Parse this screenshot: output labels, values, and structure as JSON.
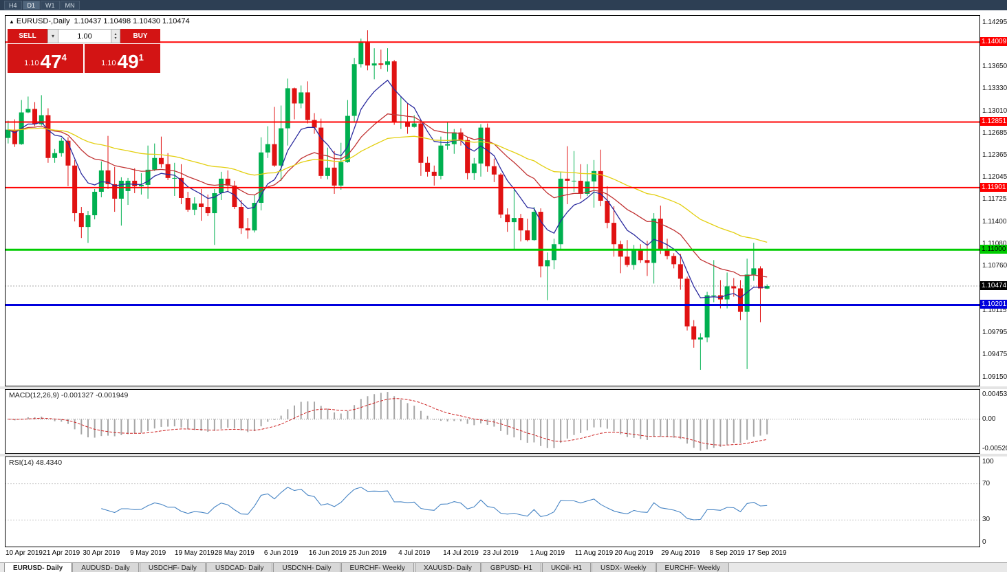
{
  "topbar": {
    "timeframes": [
      {
        "label": "H4",
        "active": false
      },
      {
        "label": "D1",
        "active": true
      },
      {
        "label": "W1",
        "active": false
      },
      {
        "label": "MN",
        "active": false
      }
    ]
  },
  "chart_header": {
    "collapse_arrow": "▲",
    "symbol_text": "EURUSD-,Daily",
    "ohlc_text": "1.10437 1.10498 1.10430 1.10474"
  },
  "trade": {
    "sell_label": "SELL",
    "buy_label": "BUY",
    "volume": "1.00",
    "sell_price": {
      "prefix": "1.10",
      "big": "47",
      "sup": "4"
    },
    "buy_price": {
      "prefix": "1.10",
      "big": "49",
      "sup": "1"
    }
  },
  "chart_data": {
    "type": "candlestick",
    "symbol": "EURUSD-",
    "timeframe": "Daily",
    "current_ohlc": {
      "open": 1.10437,
      "high": 1.10498,
      "low": 1.1043,
      "close": 1.10474
    },
    "ylim": [
      1.0902,
      1.144
    ],
    "colors": {
      "bull": "#00b050",
      "bear": "#e01212"
    },
    "y_ticks": [
      1.14295,
      1.1365,
      1.1333,
      1.1301,
      1.12685,
      1.12365,
      1.12045,
      1.11725,
      1.114,
      1.1108,
      1.1076,
      1.10115,
      1.09795,
      1.09475,
      1.0915
    ],
    "hlines": [
      {
        "price": 1.14009,
        "label": "1.14009",
        "color": "#ff0000",
        "width": 2,
        "text_color": "#ffffff"
      },
      {
        "price": 1.12851,
        "label": "1.12851",
        "color": "#ff0000",
        "width": 2,
        "text_color": "#ffffff"
      },
      {
        "price": 1.11901,
        "label": "1.11901",
        "color": "#ff0000",
        "width": 2,
        "text_color": "#ffffff"
      },
      {
        "price": 1.11,
        "label": "1.11000",
        "color": "#00cc00",
        "width": 3,
        "text_color": "#000000"
      },
      {
        "price": 1.10201,
        "label": "1.10201",
        "color": "#0000dd",
        "width": 3,
        "text_color": "#ffffff"
      }
    ],
    "current_price": {
      "value": 1.10474,
      "label": "1.10474",
      "bg": "#000000"
    },
    "moving_averages": [
      {
        "period": 8,
        "type": "ema",
        "color": "#2a2a9e"
      },
      {
        "period": 21,
        "type": "ema",
        "color": "#c03030"
      },
      {
        "period": 50,
        "type": "ema",
        "color": "#e3cf10"
      }
    ],
    "x_labels": [
      {
        "label": "10 Apr 2019",
        "i": 0
      },
      {
        "label": "21 Apr 2019",
        "i": 8
      },
      {
        "label": "30 Apr 2019",
        "i": 14
      },
      {
        "label": "9 May 2019",
        "i": 21
      },
      {
        "label": "19 May 2019",
        "i": 28
      },
      {
        "label": "28 May 2019",
        "i": 34
      },
      {
        "label": "6 Jun 2019",
        "i": 41
      },
      {
        "label": "16 Jun 2019",
        "i": 48
      },
      {
        "label": "25 Jun 2019",
        "i": 54
      },
      {
        "label": "4 Jul 2019",
        "i": 61
      },
      {
        "label": "14 Jul 2019",
        "i": 68
      },
      {
        "label": "23 Jul 2019",
        "i": 74
      },
      {
        "label": "1 Aug 2019",
        "i": 81
      },
      {
        "label": "11 Aug 2019",
        "i": 88
      },
      {
        "label": "20 Aug 2019",
        "i": 94
      },
      {
        "label": "29 Aug 2019",
        "i": 101
      },
      {
        "label": "8 Sep 2019",
        "i": 108
      },
      {
        "label": "17 Sep 2019",
        "i": 114
      }
    ],
    "candles": [
      [
        1.1262,
        1.1287,
        1.1254,
        1.1274
      ],
      [
        1.1274,
        1.1289,
        1.1249,
        1.1253
      ],
      [
        1.1253,
        1.1317,
        1.1252,
        1.1299
      ],
      [
        1.1299,
        1.1322,
        1.1298,
        1.1304
      ],
      [
        1.1304,
        1.1314,
        1.1279,
        1.1282
      ],
      [
        1.1282,
        1.1324,
        1.128,
        1.1295
      ],
      [
        1.1295,
        1.1305,
        1.1226,
        1.1233
      ],
      [
        1.1233,
        1.1246,
        1.1226,
        1.124
      ],
      [
        1.124,
        1.1262,
        1.1235,
        1.1258
      ],
      [
        1.1258,
        1.1263,
        1.1192,
        1.1222
      ],
      [
        1.1222,
        1.123,
        1.1141,
        1.1153
      ],
      [
        1.1153,
        1.1162,
        1.1117,
        1.1133
      ],
      [
        1.1133,
        1.1156,
        1.111,
        1.115
      ],
      [
        1.115,
        1.1188,
        1.1144,
        1.1184
      ],
      [
        1.1184,
        1.1228,
        1.1176,
        1.1215
      ],
      [
        1.1215,
        1.1265,
        1.1188,
        1.1195
      ],
      [
        1.1195,
        1.122,
        1.1155,
        1.1174
      ],
      [
        1.1174,
        1.1205,
        1.1135,
        1.12
      ],
      [
        1.1185,
        1.1204,
        1.1165,
        1.12
      ],
      [
        1.12,
        1.1218,
        1.1182,
        1.1192
      ],
      [
        1.1192,
        1.1211,
        1.118,
        1.1194
      ],
      [
        1.1194,
        1.1251,
        1.1174,
        1.1216
      ],
      [
        1.1216,
        1.1254,
        1.1214,
        1.1233
      ],
      [
        1.1233,
        1.1264,
        1.1219,
        1.1224
      ],
      [
        1.1224,
        1.124,
        1.1201,
        1.1204
      ],
      [
        1.1204,
        1.1226,
        1.1178,
        1.1204
      ],
      [
        1.1204,
        1.1224,
        1.1166,
        1.1175
      ],
      [
        1.1175,
        1.1184,
        1.1155,
        1.1158
      ],
      [
        1.1158,
        1.1176,
        1.115,
        1.1167
      ],
      [
        1.1167,
        1.1188,
        1.1142,
        1.1162
      ],
      [
        1.1162,
        1.118,
        1.1149,
        1.1153
      ],
      [
        1.1153,
        1.1188,
        1.1107,
        1.1182
      ],
      [
        1.1182,
        1.1213,
        1.1172,
        1.1203
      ],
      [
        1.1203,
        1.1215,
        1.1184,
        1.1193
      ],
      [
        1.1193,
        1.12,
        1.1159,
        1.1162
      ],
      [
        1.1162,
        1.1172,
        1.1123,
        1.1131
      ],
      [
        1.1131,
        1.1146,
        1.1116,
        1.1128
      ],
      [
        1.1128,
        1.118,
        1.1125,
        1.1168
      ],
      [
        1.1168,
        1.1263,
        1.1157,
        1.1241
      ],
      [
        1.1241,
        1.1279,
        1.1233,
        1.1253
      ],
      [
        1.1253,
        1.1307,
        1.122,
        1.1222
      ],
      [
        1.1222,
        1.1309,
        1.12,
        1.1276
      ],
      [
        1.1276,
        1.1348,
        1.1251,
        1.1334
      ],
      [
        1.1334,
        1.1335,
        1.1289,
        1.1312
      ],
      [
        1.1312,
        1.1338,
        1.1305,
        1.1328
      ],
      [
        1.1328,
        1.1344,
        1.1283,
        1.1288
      ],
      [
        1.1288,
        1.1298,
        1.1268,
        1.1277
      ],
      [
        1.1277,
        1.129,
        1.1203,
        1.1207
      ],
      [
        1.1207,
        1.1248,
        1.1202,
        1.1219
      ],
      [
        1.1219,
        1.1243,
        1.1181,
        1.1193
      ],
      [
        1.1193,
        1.1255,
        1.1187,
        1.1227
      ],
      [
        1.1227,
        1.1317,
        1.1226,
        1.1294
      ],
      [
        1.1294,
        1.1378,
        1.1285,
        1.1369
      ],
      [
        1.1369,
        1.1406,
        1.1364,
        1.14
      ],
      [
        1.14,
        1.1418,
        1.136,
        1.1367
      ],
      [
        1.1367,
        1.1392,
        1.1347,
        1.137
      ],
      [
        1.137,
        1.139,
        1.1362,
        1.1368
      ],
      [
        1.1368,
        1.1392,
        1.1358,
        1.1373
      ],
      [
        1.1373,
        1.1375,
        1.1281,
        1.1285
      ],
      [
        1.1285,
        1.1322,
        1.1275,
        1.1286
      ],
      [
        1.1286,
        1.1312,
        1.1268,
        1.1278
      ],
      [
        1.1278,
        1.1295,
        1.1277,
        1.1283
      ],
      [
        1.1283,
        1.1288,
        1.1207,
        1.1226
      ],
      [
        1.1226,
        1.1235,
        1.1206,
        1.1213
      ],
      [
        1.1213,
        1.1222,
        1.1193,
        1.1207
      ],
      [
        1.1207,
        1.1264,
        1.1202,
        1.1251
      ],
      [
        1.1251,
        1.1286,
        1.1245,
        1.1253
      ],
      [
        1.1253,
        1.1275,
        1.1239,
        1.127
      ],
      [
        1.127,
        1.1276,
        1.1251,
        1.1259
      ],
      [
        1.1259,
        1.1263,
        1.1202,
        1.1211
      ],
      [
        1.1211,
        1.1233,
        1.1201,
        1.1225
      ],
      [
        1.1225,
        1.1282,
        1.1206,
        1.1277
      ],
      [
        1.1277,
        1.1283,
        1.1213,
        1.1221
      ],
      [
        1.1221,
        1.1232,
        1.1198,
        1.1209
      ],
      [
        1.1209,
        1.1211,
        1.1146,
        1.1151
      ],
      [
        1.1151,
        1.116,
        1.1126,
        1.114
      ],
      [
        1.114,
        1.1187,
        1.1101,
        1.1146
      ],
      [
        1.1146,
        1.1152,
        1.1112,
        1.1128
      ],
      [
        1.1128,
        1.1145,
        1.1112,
        1.1114
      ],
      [
        1.1114,
        1.1162,
        1.1113,
        1.1155
      ],
      [
        1.1155,
        1.116,
        1.106,
        1.1076
      ],
      [
        1.1076,
        1.1096,
        1.1027,
        1.1085
      ],
      [
        1.1085,
        1.1116,
        1.1072,
        1.1108
      ],
      [
        1.1108,
        1.1213,
        1.1101,
        1.1203
      ],
      [
        1.1203,
        1.125,
        1.1166,
        1.12
      ],
      [
        1.12,
        1.1243,
        1.1184,
        1.12
      ],
      [
        1.12,
        1.1224,
        1.1174,
        1.1181
      ],
      [
        1.1181,
        1.1224,
        1.1178,
        1.1199
      ],
      [
        1.1199,
        1.123,
        1.1161,
        1.1214
      ],
      [
        1.1214,
        1.1245,
        1.1163,
        1.1171
      ],
      [
        1.1171,
        1.1192,
        1.1131,
        1.1139
      ],
      [
        1.1139,
        1.1163,
        1.109,
        1.1108
      ],
      [
        1.1108,
        1.1113,
        1.1066,
        1.109
      ],
      [
        1.109,
        1.1114,
        1.1075,
        1.1078
      ],
      [
        1.1078,
        1.1107,
        1.1071,
        1.11
      ],
      [
        1.11,
        1.1108,
        1.1081,
        1.1085
      ],
      [
        1.1085,
        1.1113,
        1.1062,
        1.1081
      ],
      [
        1.1081,
        1.1153,
        1.1051,
        1.1145
      ],
      [
        1.1145,
        1.1164,
        1.1094,
        1.1101
      ],
      [
        1.1101,
        1.1116,
        1.1086,
        1.1091
      ],
      [
        1.1091,
        1.1095,
        1.1073,
        1.1079
      ],
      [
        1.1079,
        1.1094,
        1.1042,
        1.1058
      ],
      [
        1.1058,
        1.1061,
        1.0983,
        1.0989
      ],
      [
        1.0989,
        1.0998,
        1.0958,
        1.097
      ],
      [
        1.097,
        1.0979,
        1.0926,
        1.0973
      ],
      [
        1.0973,
        1.1039,
        1.0966,
        1.1034
      ],
      [
        1.1034,
        1.1085,
        1.1024,
        1.1034
      ],
      [
        1.1034,
        1.1056,
        1.1015,
        1.1028
      ],
      [
        1.1028,
        1.1067,
        1.1015,
        1.1047
      ],
      [
        1.1047,
        1.1059,
        1.1032,
        1.1044
      ],
      [
        1.1044,
        1.1056,
        1.0998,
        1.101
      ],
      [
        1.101,
        1.1087,
        1.0927,
        1.1064
      ],
      [
        1.1064,
        1.111,
        1.1055,
        1.1073
      ],
      [
        1.1073,
        1.1076,
        1.0995,
        1.1044
      ],
      [
        1.10437,
        1.10498,
        1.1043,
        1.10474
      ]
    ],
    "macd": {
      "fast": 12,
      "slow": 26,
      "signal_period": 9,
      "label": "MACD(12,26,9) -0.001327 -0.001949",
      "axis_labels": [
        "0.004536",
        "0.00",
        "-0.005205"
      ],
      "ylim": [
        -0.005205,
        0.004536
      ],
      "hist_color": "#a6a6a6",
      "signal_color": "#cc2020"
    },
    "rsi": {
      "period": 14,
      "label": "RSI(14) 48.4340",
      "axis_labels": [
        100,
        70,
        30,
        0
      ],
      "levels": [
        70,
        30
      ],
      "color": "#4684c4"
    }
  },
  "tabs": [
    {
      "label": "EURUSD- Daily",
      "active": true
    },
    {
      "label": "AUDUSD- Daily",
      "active": false
    },
    {
      "label": "USDCHF- Daily",
      "active": false
    },
    {
      "label": "USDCAD- Daily",
      "active": false
    },
    {
      "label": "USDCNH- Daily",
      "active": false
    },
    {
      "label": "EURCHF- Weekly",
      "active": false
    },
    {
      "label": "XAUUSD- Daily",
      "active": false
    },
    {
      "label": "GBPUSD- H1",
      "active": false
    },
    {
      "label": "UKOil- H1",
      "active": false
    },
    {
      "label": "USDX- Weekly",
      "active": false
    },
    {
      "label": "EURCHF- Weekly",
      "active": false
    }
  ]
}
